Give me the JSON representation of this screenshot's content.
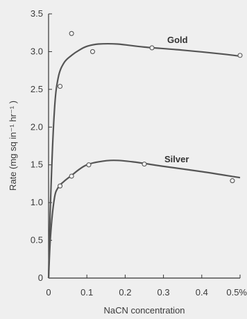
{
  "chart_data": {
    "type": "line",
    "title": "",
    "xlabel": "NaCN concentration",
    "ylabel": "Rate (mg sq in⁻¹ hr⁻¹ )",
    "xlim": [
      0,
      0.5
    ],
    "ylim": [
      0,
      3.5
    ],
    "x_ticks": [
      0,
      0.1,
      0.2,
      0.3,
      0.4,
      0.5
    ],
    "x_tick_labels": [
      "0",
      "0.1",
      "0.2",
      "0.3",
      "0.4",
      "0.5%"
    ],
    "y_ticks": [
      0,
      0.5,
      1.0,
      1.5,
      2.0,
      2.5,
      3.0,
      3.5
    ],
    "y_tick_labels": [
      "0",
      "0.5",
      "1.0",
      "1.5",
      "2.0",
      "2.5",
      "3.0",
      "3.5"
    ],
    "grid": false,
    "legend": "none (series labelled directly on curves)",
    "colors": {
      "line": "#555555",
      "marker": "#555555",
      "axis": "#333333",
      "background": "#efefef"
    },
    "series": [
      {
        "name": "Gold",
        "points": [
          [
            0.03,
            2.54
          ],
          [
            0.06,
            3.24
          ],
          [
            0.115,
            3.0
          ],
          [
            0.27,
            3.05
          ],
          [
            0.5,
            2.95
          ]
        ],
        "curve": [
          [
            0,
            0
          ],
          [
            0.005,
            1.0
          ],
          [
            0.015,
            2.2
          ],
          [
            0.025,
            2.65
          ],
          [
            0.04,
            2.85
          ],
          [
            0.06,
            2.95
          ],
          [
            0.08,
            3.02
          ],
          [
            0.1,
            3.07
          ],
          [
            0.13,
            3.1
          ],
          [
            0.18,
            3.1
          ],
          [
            0.25,
            3.06
          ],
          [
            0.35,
            3.02
          ],
          [
            0.45,
            2.97
          ],
          [
            0.5,
            2.94
          ]
        ]
      },
      {
        "name": "Silver",
        "points": [
          [
            0.03,
            1.22
          ],
          [
            0.06,
            1.35
          ],
          [
            0.105,
            1.5
          ],
          [
            0.25,
            1.51
          ],
          [
            0.48,
            1.29
          ]
        ],
        "curve": [
          [
            0,
            0
          ],
          [
            0.005,
            0.55
          ],
          [
            0.015,
            1.05
          ],
          [
            0.025,
            1.2
          ],
          [
            0.04,
            1.28
          ],
          [
            0.06,
            1.36
          ],
          [
            0.08,
            1.44
          ],
          [
            0.1,
            1.5
          ],
          [
            0.13,
            1.54
          ],
          [
            0.17,
            1.56
          ],
          [
            0.22,
            1.54
          ],
          [
            0.3,
            1.48
          ],
          [
            0.4,
            1.41
          ],
          [
            0.5,
            1.33
          ]
        ]
      }
    ]
  }
}
